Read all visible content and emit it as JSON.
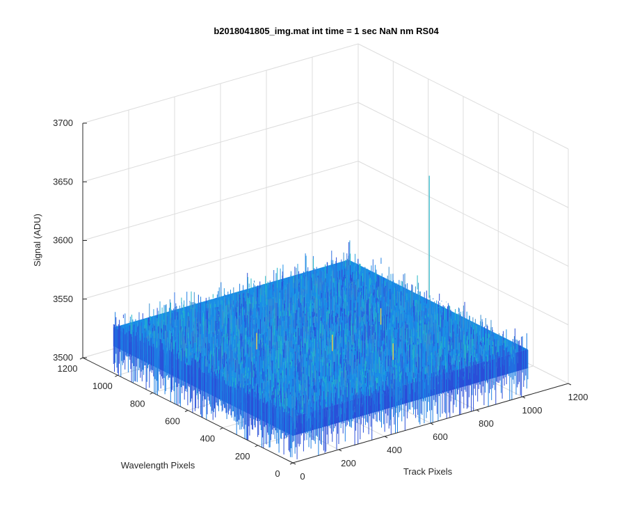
{
  "chart_data": {
    "type": "surface",
    "title": "b2018041805_img.mat int time = 1 sec  NaN nm RS04",
    "xlabel": "Track Pixels",
    "ylabel": "Wavelength Pixels",
    "zlabel": "Signal (ADU)",
    "xlim": [
      0,
      1200
    ],
    "ylim": [
      0,
      1200
    ],
    "zlim": [
      3500,
      3700
    ],
    "xticks": [
      "0",
      "200",
      "400",
      "600",
      "800",
      "1000",
      "1200"
    ],
    "yticks": [
      "0",
      "200",
      "400",
      "600",
      "800",
      "1000",
      "1200"
    ],
    "zticks": [
      "3500",
      "3550",
      "3600",
      "3650",
      "3700"
    ],
    "grid": true,
    "surface": {
      "x_range": [
        0,
        1024
      ],
      "y_range": [
        0,
        1024
      ],
      "mean_signal": 3535,
      "noise_spread": 10,
      "peak_signal": 3645,
      "colormap": "parula"
    },
    "colors": {
      "low": "#2a4fd8",
      "mid": "#1a8ee6",
      "high": "#24b7c8",
      "outlier": "#e8d04a"
    }
  }
}
